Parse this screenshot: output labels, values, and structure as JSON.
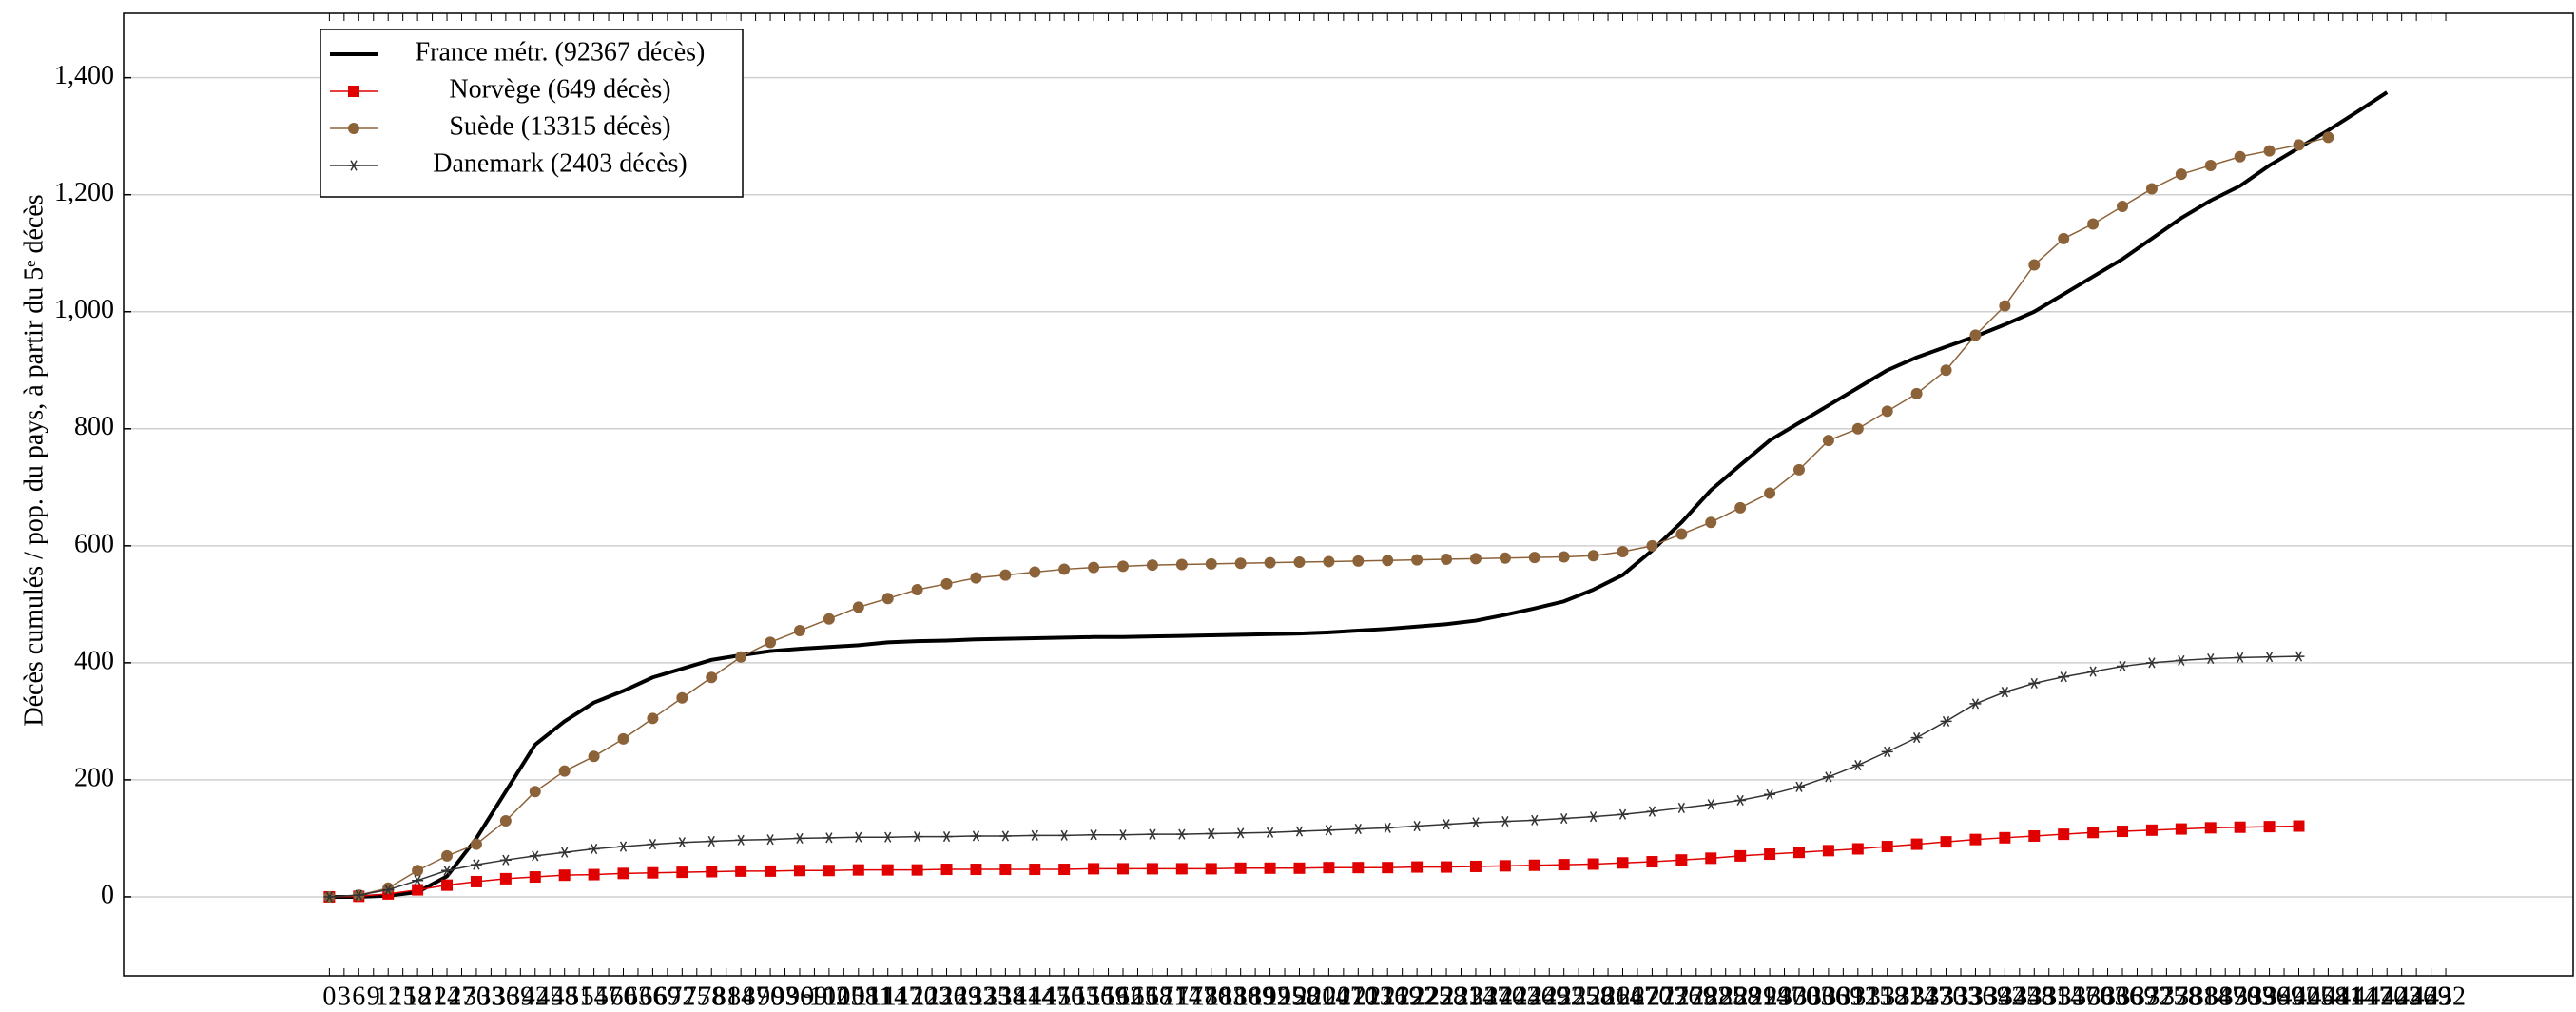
{
  "chart_data": {
    "type": "line",
    "y_label": "Décès cumulés / pop. du pays, à partir du 5ᵉ décès",
    "x": [
      0,
      6,
      12,
      18,
      24,
      30,
      36,
      42,
      48,
      54,
      60,
      66,
      72,
      78,
      84,
      90,
      96,
      102,
      108,
      114,
      120,
      126,
      132,
      138,
      144,
      150,
      156,
      162,
      168,
      174,
      180,
      186,
      192,
      198,
      204,
      210,
      216,
      222,
      228,
      234,
      240,
      246,
      252,
      258,
      264,
      270,
      276,
      282,
      288,
      294,
      300,
      306,
      312,
      318,
      324,
      330,
      336,
      342,
      348,
      354,
      360,
      366,
      372,
      378,
      384,
      390,
      396,
      402,
      408,
      414,
      420
    ],
    "series": [
      {
        "name": "France métr. (92367 décès)",
        "color": "#000000",
        "marker": "none",
        "width": 4,
        "values": [
          0,
          0,
          2,
          8,
          35,
          100,
          180,
          260,
          300,
          332,
          352,
          375,
          390,
          405,
          413,
          420,
          424,
          427,
          430,
          435,
          437,
          438,
          440,
          441,
          442,
          443,
          444,
          444,
          445,
          446,
          447,
          448,
          449,
          450,
          452,
          455,
          458,
          462,
          466,
          472,
          482,
          493,
          505,
          525,
          550,
          592,
          640,
          695,
          738,
          780,
          810,
          840,
          870,
          900,
          922,
          940,
          958,
          978,
          1000,
          1030,
          1060,
          1090,
          1125,
          1160,
          1190,
          1215,
          1250,
          1280,
          1310,
          1342,
          1375
        ]
      },
      {
        "name": "Norvège (649 décès)",
        "color": "#e00000",
        "marker": "square",
        "width": 1.5,
        "values": [
          0,
          1,
          5,
          12,
          20,
          26,
          31,
          34,
          37,
          38,
          40,
          41,
          42,
          43,
          44,
          44,
          45,
          45,
          46,
          46,
          46,
          47,
          47,
          47,
          47,
          47,
          48,
          48,
          48,
          48,
          48,
          49,
          49,
          49,
          50,
          50,
          50,
          51,
          51,
          52,
          53,
          54,
          55,
          56,
          58,
          60,
          63,
          66,
          70,
          73,
          76,
          79,
          82,
          86,
          90,
          94,
          98,
          101,
          104,
          107,
          110,
          112,
          114,
          116,
          118,
          119,
          120,
          121,
          null,
          null,
          null
        ]
      },
      {
        "name": "Suède (13315 décès)",
        "color": "#8c6239",
        "marker": "circle",
        "width": 1.5,
        "values": [
          0,
          3,
          15,
          45,
          70,
          90,
          130,
          180,
          215,
          240,
          270,
          305,
          340,
          375,
          410,
          435,
          455,
          475,
          495,
          510,
          525,
          535,
          545,
          550,
          555,
          560,
          563,
          565,
          567,
          568,
          569,
          570,
          571,
          572,
          573,
          574,
          575,
          576,
          577,
          578,
          579,
          580,
          581,
          583,
          590,
          600,
          620,
          640,
          665,
          690,
          730,
          780,
          800,
          830,
          860,
          900,
          960,
          1010,
          1080,
          1125,
          1150,
          1180,
          1210,
          1235,
          1250,
          1265,
          1275,
          1285,
          1298,
          null,
          null
        ]
      },
      {
        "name": "Danemark (2403 décès)",
        "color": "#333333",
        "marker": "star",
        "width": 1.5,
        "values": [
          0,
          3,
          12,
          28,
          45,
          55,
          63,
          70,
          76,
          82,
          86,
          90,
          93,
          95,
          97,
          98,
          100,
          101,
          102,
          102,
          103,
          103,
          104,
          104,
          105,
          105,
          106,
          106,
          107,
          107,
          108,
          109,
          110,
          112,
          114,
          116,
          118,
          121,
          124,
          127,
          129,
          131,
          134,
          137,
          141,
          146,
          152,
          158,
          165,
          175,
          188,
          205,
          225,
          248,
          272,
          300,
          330,
          350,
          365,
          376,
          385,
          394,
          400,
          404,
          407,
          409,
          410,
          411,
          null,
          null,
          null
        ]
      }
    ],
    "xlim": [
      -42,
      458
    ],
    "xticks": [
      0,
      3,
      6,
      9,
      12,
      15,
      18,
      21,
      24,
      27,
      30,
      33,
      36,
      39,
      42,
      45,
      48,
      51,
      54,
      57,
      60,
      63,
      66,
      69,
      72,
      75,
      78,
      81,
      84,
      87,
      90,
      93,
      96,
      99,
      102,
      105,
      108,
      111,
      114,
      117,
      120,
      123,
      126,
      129,
      132,
      135,
      138,
      141,
      144,
      147,
      150,
      153,
      156,
      159,
      162,
      165,
      168,
      171,
      174,
      177,
      180,
      183,
      186,
      189,
      192,
      195,
      198,
      201,
      204,
      207,
      210,
      213,
      216,
      219,
      222,
      225,
      228,
      231,
      234,
      237,
      240,
      243,
      246,
      249,
      252,
      255,
      258,
      261,
      264,
      267,
      270,
      273,
      276,
      279,
      282,
      285,
      288,
      291,
      294,
      297,
      300,
      303,
      306,
      309,
      312,
      315,
      318,
      321,
      324,
      327,
      330,
      333,
      336,
      339,
      342,
      345,
      348,
      351,
      354,
      357,
      360,
      363,
      366,
      369,
      372,
      375,
      378,
      381,
      384,
      387,
      390,
      393,
      396,
      399,
      402,
      405,
      408,
      411,
      414,
      417,
      420,
      423,
      426,
      429,
      432
    ],
    "ylim": [
      -135,
      1510
    ],
    "yticks": [
      0,
      200,
      400,
      600,
      800,
      {
        "value": 1000,
        "label": "1,000"
      },
      {
        "value": 1200,
        "label": "1,200"
      },
      {
        "value": 1400,
        "label": "1,400"
      }
    ],
    "grid": true,
    "legend": "top-left"
  }
}
